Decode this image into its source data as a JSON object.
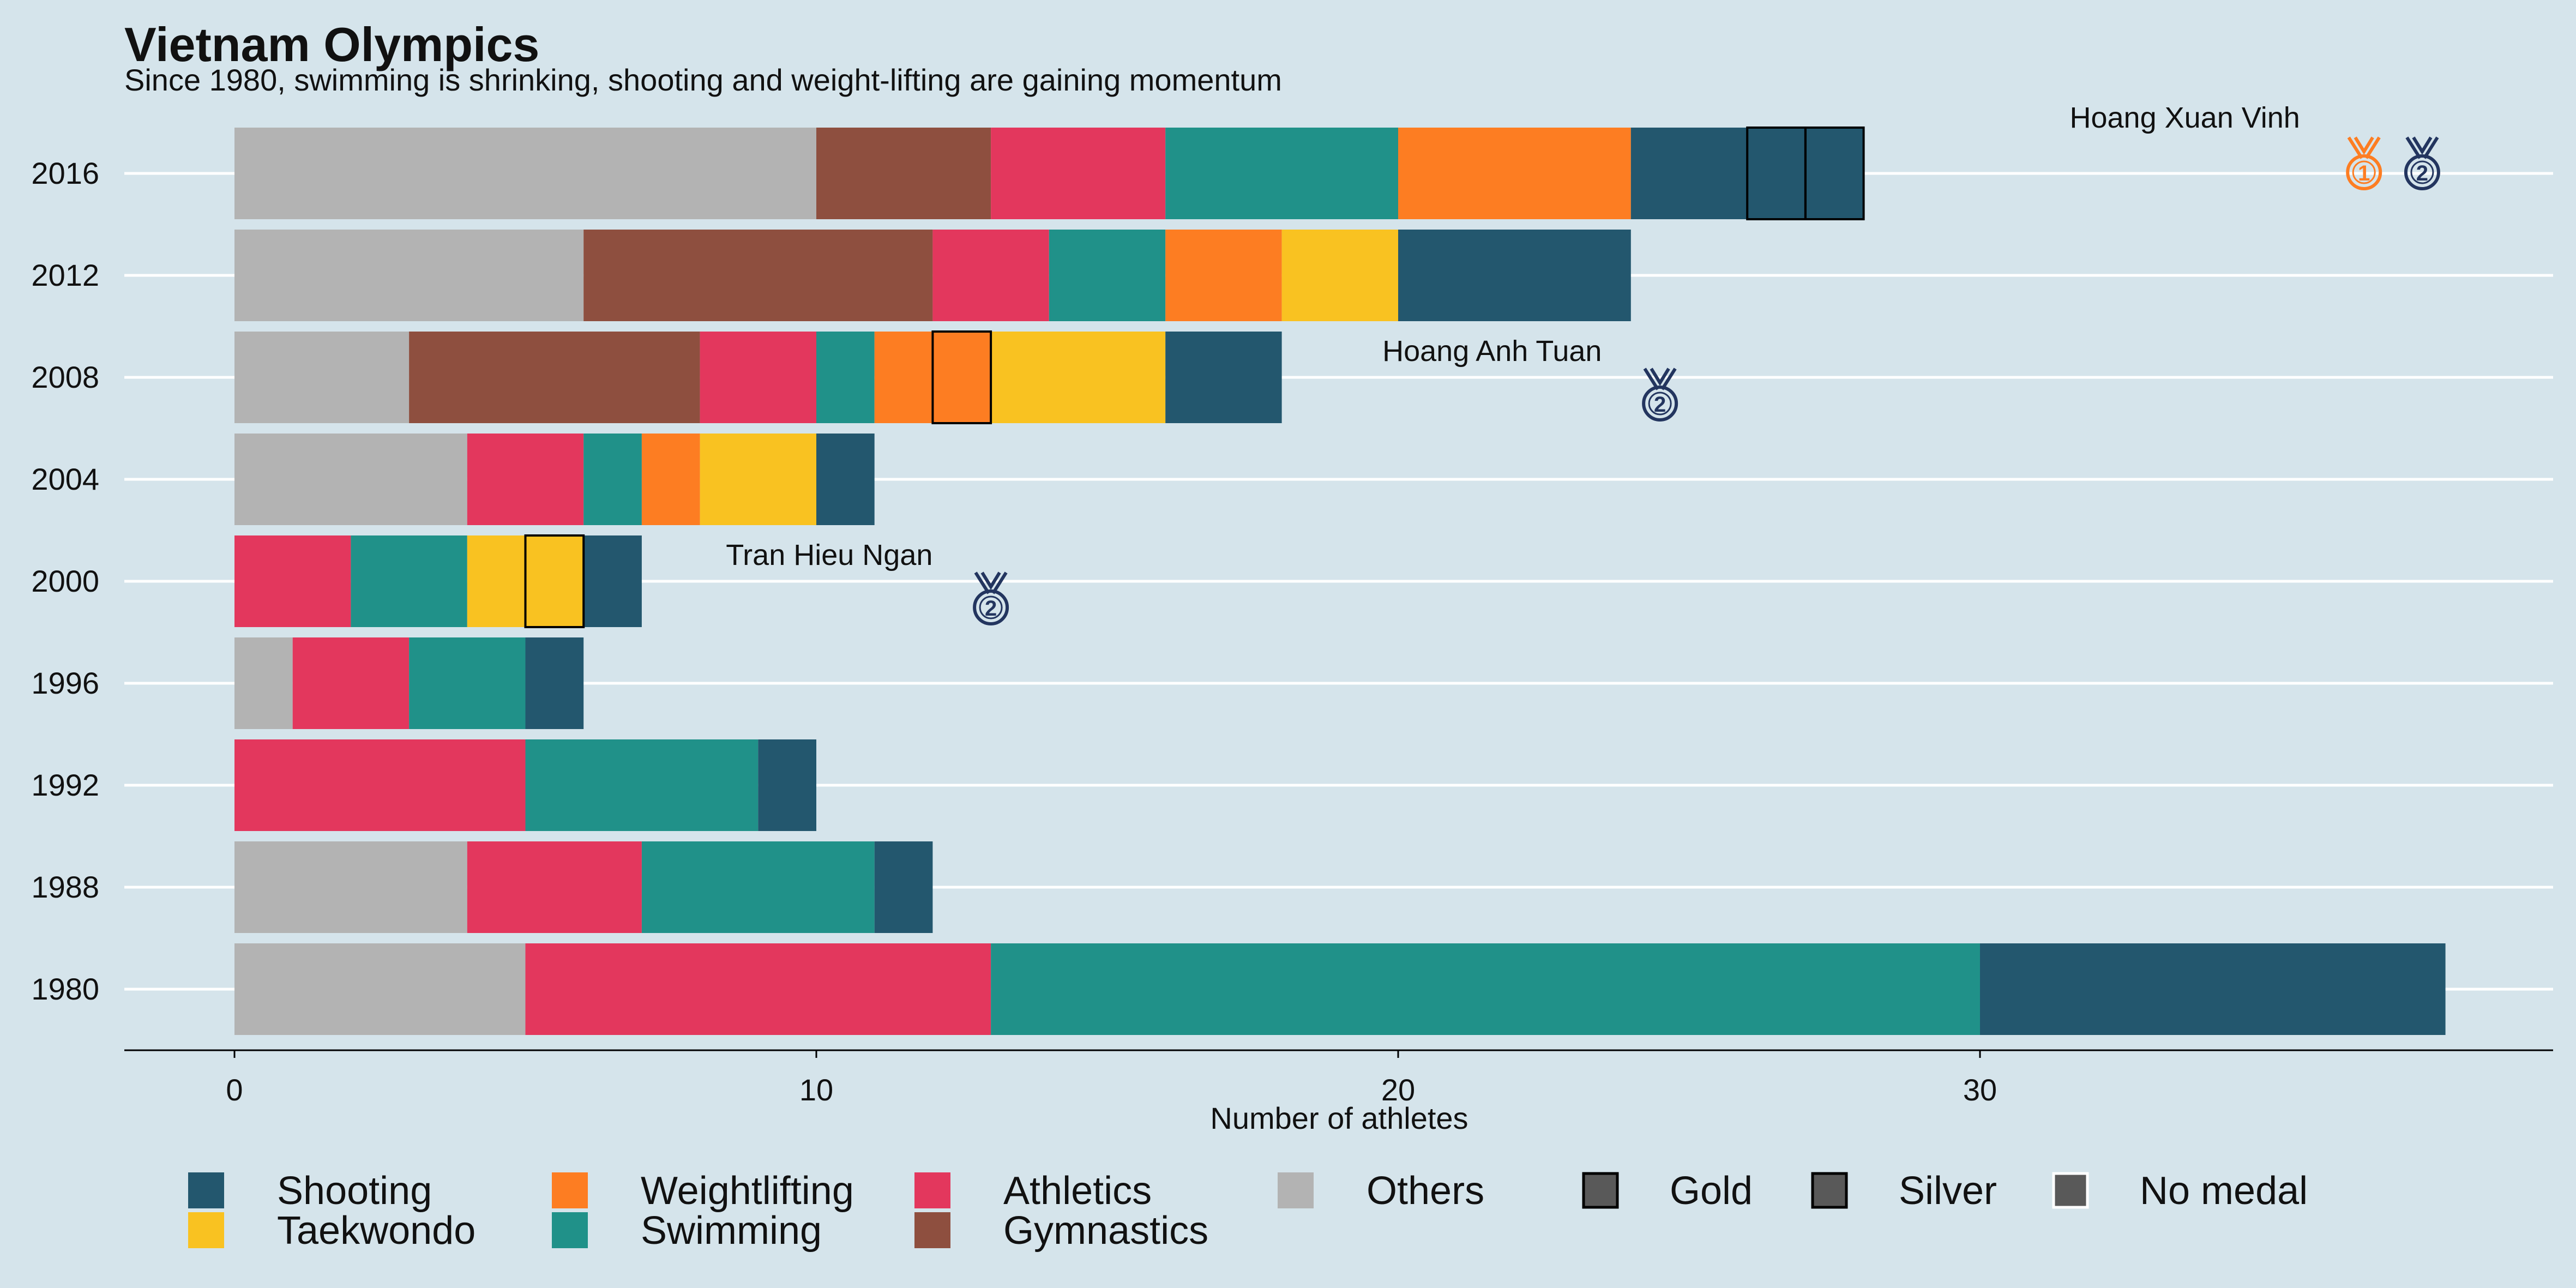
{
  "chart_data": {
    "type": "bar",
    "orientation": "horizontal",
    "stacked": true,
    "title": "Vietnam Olympics",
    "subtitle": "Since 1980, swimming is shrinking, shooting and weight-lifting are gaining momentum",
    "xlabel": "Number of athletes",
    "ylabel": "",
    "xlim": [
      0,
      40
    ],
    "xticks": [
      0,
      10,
      20,
      30
    ],
    "grid": "horizontal-major",
    "legend_position": "bottom",
    "categories": [
      "2016",
      "2012",
      "2008",
      "2004",
      "2000",
      "1996",
      "1992",
      "1988",
      "1980"
    ],
    "series": [
      {
        "name": "Others",
        "color": "#b3b3b3",
        "values": [
          10,
          6,
          3,
          4,
          0,
          1,
          0,
          4,
          5
        ]
      },
      {
        "name": "Gymnastics",
        "color": "#8e4f3f",
        "values": [
          3,
          6,
          5,
          0,
          0,
          0,
          0,
          0,
          0
        ]
      },
      {
        "name": "Athletics",
        "color": "#e3375d",
        "values": [
          3,
          2,
          2,
          2,
          2,
          2,
          5,
          3,
          8
        ]
      },
      {
        "name": "Swimming",
        "color": "#209189",
        "values": [
          4,
          2,
          1,
          1,
          2,
          2,
          4,
          4,
          17
        ]
      },
      {
        "name": "Weightlifting",
        "color": "#fd7d22",
        "values": [
          4,
          2,
          2,
          1,
          0,
          0,
          0,
          0,
          0
        ]
      },
      {
        "name": "Taekwondo",
        "color": "#f9c221",
        "values": [
          0,
          2,
          3,
          2,
          2,
          0,
          0,
          0,
          0
        ]
      },
      {
        "name": "Shooting",
        "color": "#23576e",
        "values": [
          4,
          4,
          2,
          1,
          1,
          1,
          1,
          1,
          8
        ]
      }
    ],
    "medal_segments": [
      {
        "category": "2016",
        "sport": "Shooting",
        "start": 26,
        "end": 27,
        "medal": "Gold"
      },
      {
        "category": "2016",
        "sport": "Shooting",
        "start": 27,
        "end": 28,
        "medal": "Silver"
      },
      {
        "category": "2008",
        "sport": "Weightlifting",
        "start": 12,
        "end": 13,
        "medal": "Silver"
      },
      {
        "category": "2000",
        "sport": "Taekwondo",
        "start": 5,
        "end": 6,
        "medal": "Silver"
      }
    ],
    "annotations": [
      {
        "category": "2016",
        "text": "Hoang Xuan Vinh",
        "x": 35.5,
        "medals": [
          {
            "type": "gold",
            "label": "1",
            "color": "#fd7d22",
            "x": 36.6
          },
          {
            "type": "silver",
            "label": "2",
            "color": "#23355f",
            "x": 37.6
          }
        ]
      },
      {
        "category": "2008",
        "text": "Hoang Anh Tuan",
        "x": 23.5,
        "medals": [
          {
            "type": "silver",
            "label": "2",
            "color": "#23355f",
            "x": 24.5
          }
        ]
      },
      {
        "category": "2000",
        "text": "Tran Hieu Ngan",
        "x": 12,
        "medals": [
          {
            "type": "silver",
            "label": "2",
            "color": "#23355f",
            "x": 13
          }
        ]
      }
    ],
    "legend": {
      "sports": [
        {
          "label": "Shooting",
          "color": "#23576e"
        },
        {
          "label": "Taekwondo",
          "color": "#f9c221"
        },
        {
          "label": "Weightlifting",
          "color": "#fd7d22"
        },
        {
          "label": "Swimming",
          "color": "#209189"
        },
        {
          "label": "Athletics",
          "color": "#e3375d"
        },
        {
          "label": "Gymnastics",
          "color": "#8e4f3f"
        },
        {
          "label": "Others",
          "color": "#b3b3b3"
        }
      ],
      "medals": [
        {
          "label": "Gold",
          "border": "#000000"
        },
        {
          "label": "Silver",
          "border": "#000000"
        },
        {
          "label": "No medal",
          "border": "#ffffff"
        }
      ]
    }
  }
}
